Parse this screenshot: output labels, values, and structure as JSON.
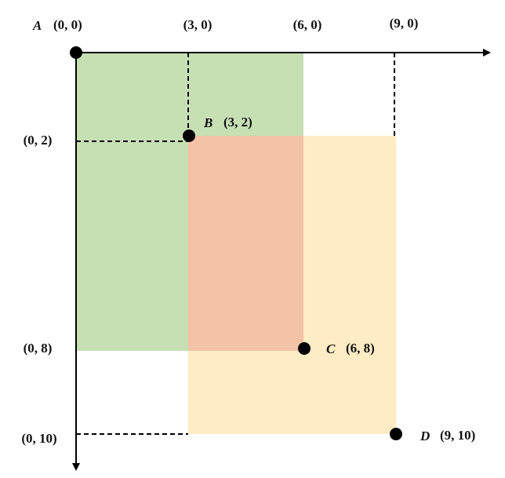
{
  "points": [
    {
      "name": "A",
      "coord": "(0, 0)"
    },
    {
      "name": "B",
      "coord": "(3, 2)"
    },
    {
      "name": "C",
      "coord": "(6, 8)"
    },
    {
      "name": "D",
      "coord": "(9, 10)"
    }
  ],
  "x_labels": [
    "(3, 0)",
    "(6, 0)",
    "(9, 0)"
  ],
  "y_labels": [
    "(0, 2)",
    "(0, 8)",
    "(0, 10)"
  ]
}
